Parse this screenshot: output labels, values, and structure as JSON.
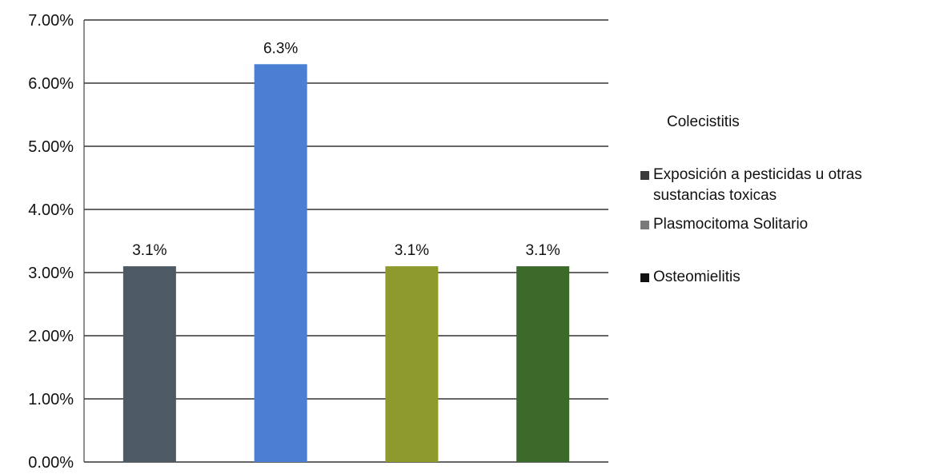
{
  "chart_data": {
    "type": "bar",
    "categories": [
      "Colecistitis",
      "Exposición a pesticidas u otras sustancias toxicas",
      "Plasmocitoma Solitario",
      "Osteomielitis"
    ],
    "values": [
      3.1,
      6.3,
      3.1,
      3.1
    ],
    "data_labels": [
      "3.1%",
      "6.3%",
      "3.1%",
      "3.1%"
    ],
    "ylim": [
      0,
      7
    ],
    "yticks": [
      0,
      1,
      2,
      3,
      4,
      5,
      6,
      7
    ],
    "ytick_labels": [
      "0.00%",
      "1.00%",
      "2.00%",
      "3.00%",
      "4.00%",
      "5.00%",
      "6.00%",
      "7.00%"
    ],
    "colors": [
      "#4d5a63",
      "#4a7fd4",
      "#8f9a2c",
      "#3c6a2a"
    ],
    "legend_colors": [
      "",
      "#3a3a3a",
      "#7a7a7a",
      "#111111"
    ],
    "grid": true,
    "legend_position": "right"
  }
}
